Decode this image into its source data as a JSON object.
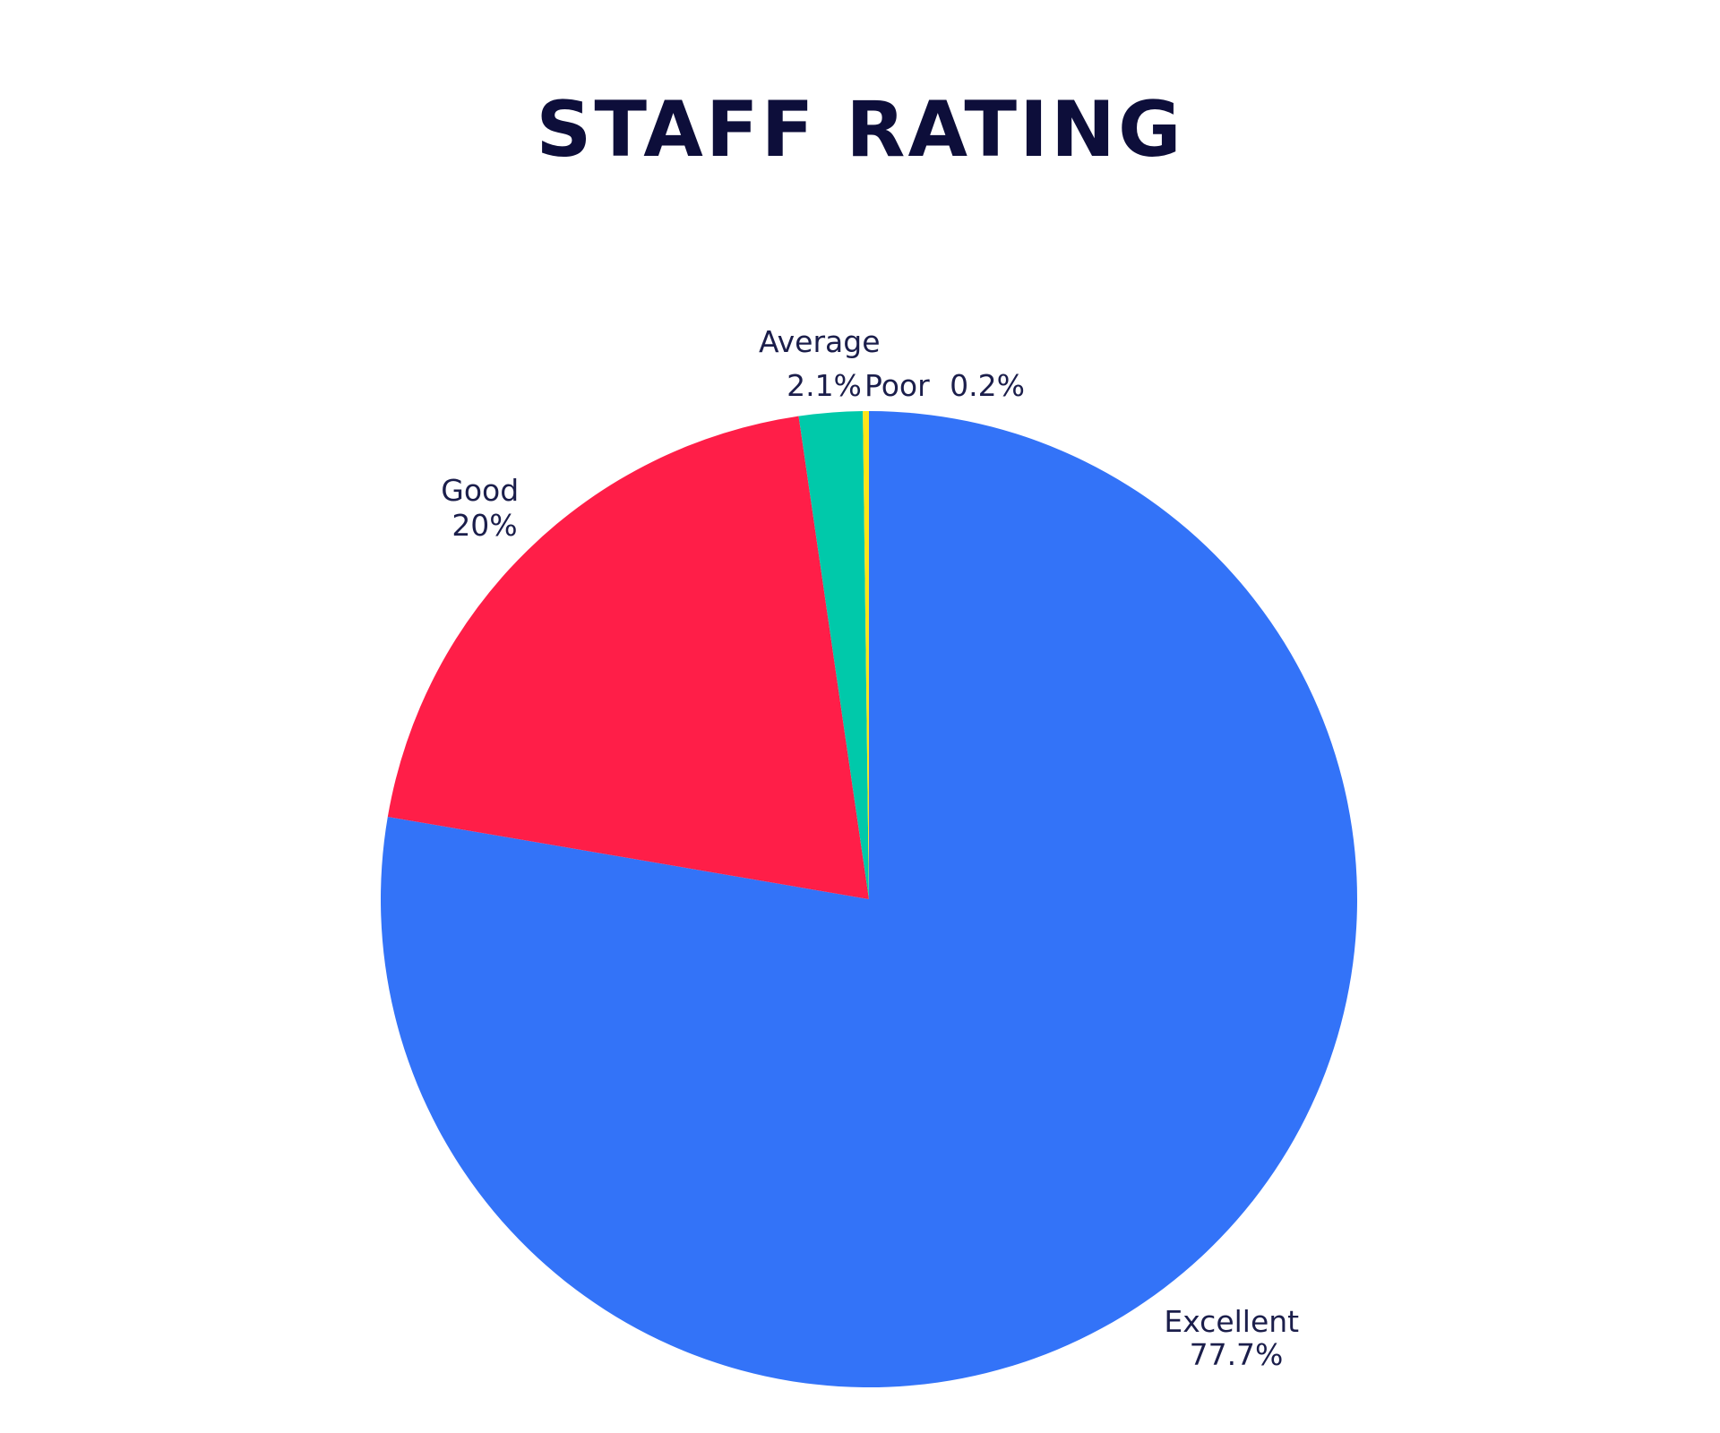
{
  "chart_data": {
    "type": "pie",
    "title": "STAFF RATING",
    "slices": [
      {
        "name": "Excellent",
        "value": 77.7,
        "label": "77.7%",
        "color": "#3373f8"
      },
      {
        "name": "Good",
        "value": 20,
        "label": "20%",
        "color": "#ff1e48"
      },
      {
        "name": "Average",
        "value": 2.1,
        "label": "2.1%",
        "color": "#00c9aa"
      },
      {
        "name": "Poor",
        "value": 0.2,
        "label": "0.2%",
        "color": "#ffe418"
      }
    ],
    "start_angle": "12 o'clock",
    "direction": "clockwise",
    "legend": "none"
  }
}
